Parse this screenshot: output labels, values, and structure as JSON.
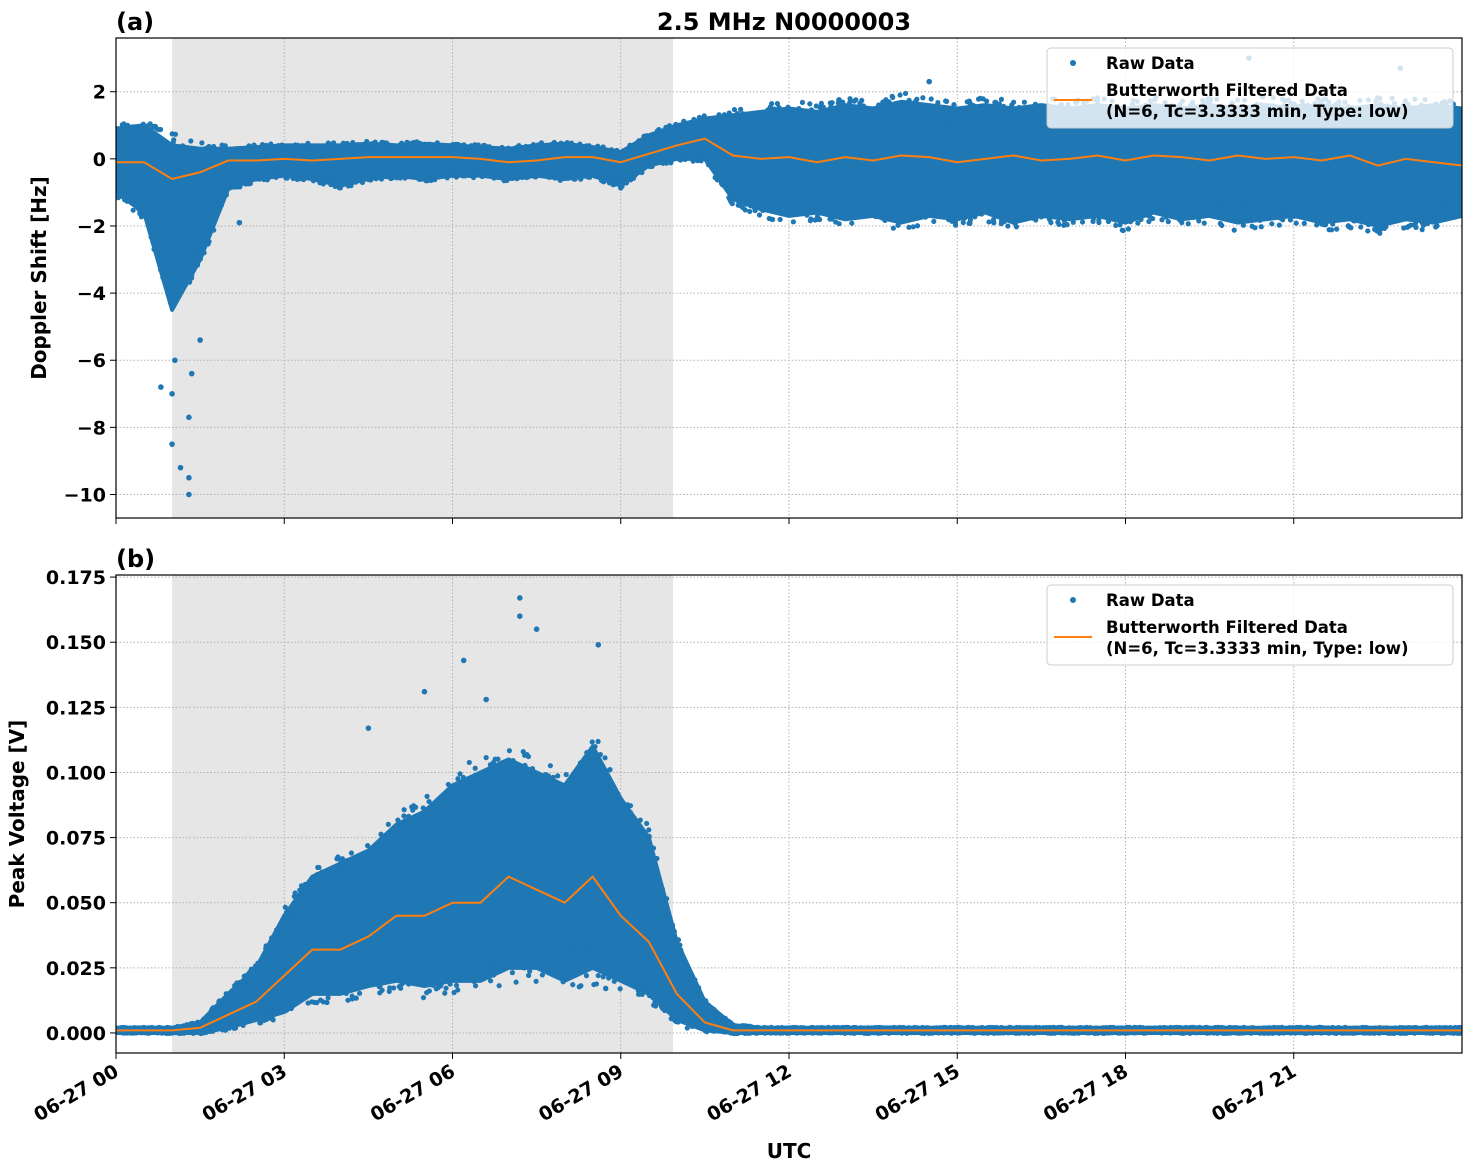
{
  "title": "2.5 MHz N0000003",
  "xlabel": "UTC",
  "colors": {
    "raw": "#1f77b4",
    "filtered": "#ff7f0e",
    "shade": "#e6e6e6"
  },
  "chart_data": [
    {
      "panel_label": "(a)",
      "type": "scatter",
      "ylabel": "Doppler Shift [Hz]",
      "ylim": [
        -10.7,
        3.6
      ],
      "yticks": [
        2,
        0,
        -2,
        -4,
        -6,
        -8,
        -10
      ],
      "ytick_labels": [
        "2",
        "0",
        "−2",
        "−4",
        "−6",
        "−8",
        "−10"
      ],
      "xlim": [
        "06-27 00:00",
        "06-28 00:00"
      ],
      "xticks": [
        "06-27 00:00",
        "06-27 03:00",
        "06-27 06:00",
        "06-27 09:00",
        "06-27 12:00",
        "06-27 15:00",
        "06-27 18:00",
        "06-27 21:00"
      ],
      "xtick_labels": [],
      "shaded_span": [
        "06-27 01:00",
        "06-27 09:56"
      ],
      "grid": true,
      "legend_position": "top-right",
      "legend": [
        "Raw Data",
        "Butterworth Filtered Data",
        "(N=6, Tc=3.3333 min, Type: low)"
      ],
      "x": [
        "06-27 00:00",
        "06-27 00:30",
        "06-27 01:00",
        "06-27 01:30",
        "06-27 02:00",
        "06-27 02:30",
        "06-27 03:00",
        "06-27 03:30",
        "06-27 04:00",
        "06-27 04:30",
        "06-27 05:00",
        "06-27 05:30",
        "06-27 06:00",
        "06-27 06:30",
        "06-27 07:00",
        "06-27 07:30",
        "06-27 08:00",
        "06-27 08:30",
        "06-27 09:00",
        "06-27 09:30",
        "06-27 10:00",
        "06-27 10:30",
        "06-27 11:00",
        "06-27 11:30",
        "06-27 12:00",
        "06-27 12:30",
        "06-27 13:00",
        "06-27 13:30",
        "06-27 14:00",
        "06-27 14:30",
        "06-27 15:00",
        "06-27 15:30",
        "06-27 16:00",
        "06-27 16:30",
        "06-27 17:00",
        "06-27 17:30",
        "06-27 18:00",
        "06-27 18:30",
        "06-27 19:00",
        "06-27 19:30",
        "06-27 20:00",
        "06-27 20:30",
        "06-27 21:00",
        "06-27 21:30",
        "06-27 22:00",
        "06-27 22:30",
        "06-27 23:00",
        "06-27 23:30",
        "06-28 00:00"
      ],
      "series": [
        {
          "name": "Butterworth Filtered Data",
          "kind": "line",
          "values": [
            -0.1,
            -0.1,
            -0.6,
            -0.4,
            -0.05,
            -0.05,
            0,
            -0.05,
            0,
            0.05,
            0.05,
            0.05,
            0.05,
            0,
            -0.1,
            -0.05,
            0.05,
            0.05,
            -0.1,
            0.15,
            0.4,
            0.6,
            0.1,
            0,
            0.05,
            -0.1,
            0.05,
            -0.05,
            0.1,
            0.05,
            -0.1,
            0,
            0.1,
            -0.05,
            0,
            0.1,
            -0.05,
            0.1,
            0.05,
            -0.05,
            0.1,
            0,
            0.05,
            -0.05,
            0.1,
            -0.2,
            0,
            -0.1,
            -0.2
          ]
        },
        {
          "name": "Raw Data",
          "kind": "scatter-envelope",
          "lower": [
            -1.0,
            -1.6,
            -4.5,
            -3.0,
            -0.9,
            -0.6,
            -0.5,
            -0.6,
            -0.8,
            -0.6,
            -0.5,
            -0.6,
            -0.5,
            -0.5,
            -0.6,
            -0.5,
            -0.6,
            -0.5,
            -0.8,
            -0.2,
            0.0,
            0.0,
            -1.2,
            -1.5,
            -1.7,
            -1.6,
            -1.8,
            -1.7,
            -1.9,
            -1.7,
            -1.8,
            -1.6,
            -1.9,
            -1.7,
            -1.8,
            -1.7,
            -1.9,
            -1.6,
            -1.8,
            -1.7,
            -1.9,
            -1.8,
            -1.7,
            -1.9,
            -1.8,
            -2.0,
            -1.8,
            -1.9,
            -1.7
          ],
          "upper": [
            0.9,
            1.0,
            0.4,
            0.3,
            0.3,
            0.35,
            0.4,
            0.4,
            0.4,
            0.45,
            0.4,
            0.45,
            0.4,
            0.35,
            0.3,
            0.4,
            0.45,
            0.35,
            0.2,
            0.7,
            1.0,
            1.2,
            1.3,
            1.4,
            1.5,
            1.4,
            1.6,
            1.5,
            1.7,
            1.6,
            1.5,
            1.6,
            1.5,
            1.6,
            1.5,
            1.6,
            1.5,
            1.6,
            1.5,
            1.6,
            1.5,
            1.6,
            1.5,
            1.6,
            1.5,
            1.6,
            1.5,
            1.6,
            1.5
          ],
          "outliers": [
            [
              "06-27 00:48",
              -6.8
            ],
            [
              "06-27 01:00",
              -7.0
            ],
            [
              "06-27 01:00",
              -8.5
            ],
            [
              "06-27 01:03",
              -6.0
            ],
            [
              "06-27 01:09",
              -9.2
            ],
            [
              "06-27 01:18",
              -10.0
            ],
            [
              "06-27 01:18",
              -9.5
            ],
            [
              "06-27 01:18",
              -7.7
            ],
            [
              "06-27 01:21",
              -6.4
            ],
            [
              "06-27 01:30",
              -5.4
            ],
            [
              "06-27 02:12",
              -1.9
            ],
            [
              "06-27 14:30",
              2.3
            ],
            [
              "06-27 20:12",
              3.0
            ],
            [
              "06-27 22:54",
              2.7
            ]
          ]
        }
      ]
    },
    {
      "panel_label": "(b)",
      "type": "scatter",
      "ylabel": "Peak Voltage [V]",
      "ylim": [
        -0.0077,
        0.1758
      ],
      "yticks": [
        0,
        0.025,
        0.05,
        0.075,
        0.1,
        0.125,
        0.15,
        0.175
      ],
      "ytick_labels": [
        "0.000",
        "0.025",
        "0.050",
        "0.075",
        "0.100",
        "0.125",
        "0.150",
        "0.175"
      ],
      "xlim": [
        "06-27 00:00",
        "06-28 00:00"
      ],
      "xticks": [
        "06-27 00:00",
        "06-27 03:00",
        "06-27 06:00",
        "06-27 09:00",
        "06-27 12:00",
        "06-27 15:00",
        "06-27 18:00",
        "06-27 21:00"
      ],
      "xtick_labels": [
        "06-27 00",
        "06-27 03",
        "06-27 06",
        "06-27 09",
        "06-27 12",
        "06-27 15",
        "06-27 18",
        "06-27 21"
      ],
      "shaded_span": [
        "06-27 01:00",
        "06-27 09:56"
      ],
      "grid": true,
      "legend_position": "top-right",
      "legend": [
        "Raw Data",
        "Butterworth Filtered Data",
        "(N=6, Tc=3.3333 min, Type: low)"
      ],
      "x": [
        "06-27 00:00",
        "06-27 00:30",
        "06-27 01:00",
        "06-27 01:30",
        "06-27 02:00",
        "06-27 02:30",
        "06-27 03:00",
        "06-27 03:30",
        "06-27 04:00",
        "06-27 04:30",
        "06-27 05:00",
        "06-27 05:30",
        "06-27 06:00",
        "06-27 06:30",
        "06-27 07:00",
        "06-27 07:30",
        "06-27 08:00",
        "06-27 08:30",
        "06-27 09:00",
        "06-27 09:30",
        "06-27 10:00",
        "06-27 10:30",
        "06-27 11:00",
        "06-27 11:30",
        "06-27 12:00",
        "06-27 12:30",
        "06-27 13:00",
        "06-27 13:30",
        "06-27 14:00",
        "06-27 14:30",
        "06-27 15:00",
        "06-27 15:30",
        "06-27 16:00",
        "06-27 16:30",
        "06-27 17:00",
        "06-27 17:30",
        "06-27 18:00",
        "06-27 18:30",
        "06-27 19:00",
        "06-27 19:30",
        "06-27 20:00",
        "06-27 20:30",
        "06-27 21:00",
        "06-27 21:30",
        "06-27 22:00",
        "06-27 22:30",
        "06-27 23:00",
        "06-27 23:30",
        "06-28 00:00"
      ],
      "series": [
        {
          "name": "Butterworth Filtered Data",
          "kind": "line",
          "values": [
            0.001,
            0.001,
            0.001,
            0.002,
            0.007,
            0.012,
            0.022,
            0.032,
            0.032,
            0.037,
            0.045,
            0.045,
            0.05,
            0.05,
            0.06,
            0.055,
            0.05,
            0.06,
            0.045,
            0.035,
            0.015,
            0.004,
            0.001,
            0.001,
            0.001,
            0.001,
            0.001,
            0.001,
            0.001,
            0.001,
            0.001,
            0.001,
            0.001,
            0.001,
            0.001,
            0.001,
            0.001,
            0.001,
            0.001,
            0.001,
            0.001,
            0.001,
            0.001,
            0.001,
            0.001,
            0.001,
            0.001,
            0.001,
            0.001
          ]
        },
        {
          "name": "Raw Data",
          "kind": "scatter-envelope",
          "lower": [
            0,
            0,
            0,
            0,
            0.002,
            0.005,
            0.008,
            0.015,
            0.015,
            0.018,
            0.02,
            0.018,
            0.02,
            0.02,
            0.025,
            0.025,
            0.02,
            0.025,
            0.02,
            0.015,
            0.005,
            0.001,
            0,
            0,
            0,
            0,
            0,
            0,
            0,
            0,
            0,
            0,
            0,
            0,
            0,
            0,
            0,
            0,
            0,
            0,
            0,
            0,
            0,
            0,
            0,
            0,
            0,
            0,
            0
          ],
          "upper": [
            0.002,
            0.002,
            0.002,
            0.004,
            0.015,
            0.025,
            0.045,
            0.06,
            0.065,
            0.07,
            0.08,
            0.085,
            0.095,
            0.1,
            0.105,
            0.1,
            0.095,
            0.11,
            0.09,
            0.075,
            0.035,
            0.012,
            0.003,
            0.002,
            0.002,
            0.002,
            0.002,
            0.002,
            0.002,
            0.002,
            0.002,
            0.002,
            0.002,
            0.002,
            0.002,
            0.002,
            0.002,
            0.002,
            0.002,
            0.002,
            0.002,
            0.002,
            0.002,
            0.002,
            0.002,
            0.002,
            0.002,
            0.002,
            0.002
          ],
          "outliers": [
            [
              "06-27 07:12",
              0.167
            ],
            [
              "06-27 07:12",
              0.16
            ],
            [
              "06-27 06:12",
              0.143
            ],
            [
              "06-27 07:30",
              0.155
            ],
            [
              "06-27 08:36",
              0.149
            ],
            [
              "06-27 04:30",
              0.117
            ],
            [
              "06-27 05:30",
              0.131
            ],
            [
              "06-27 06:36",
              0.128
            ]
          ]
        }
      ]
    }
  ]
}
